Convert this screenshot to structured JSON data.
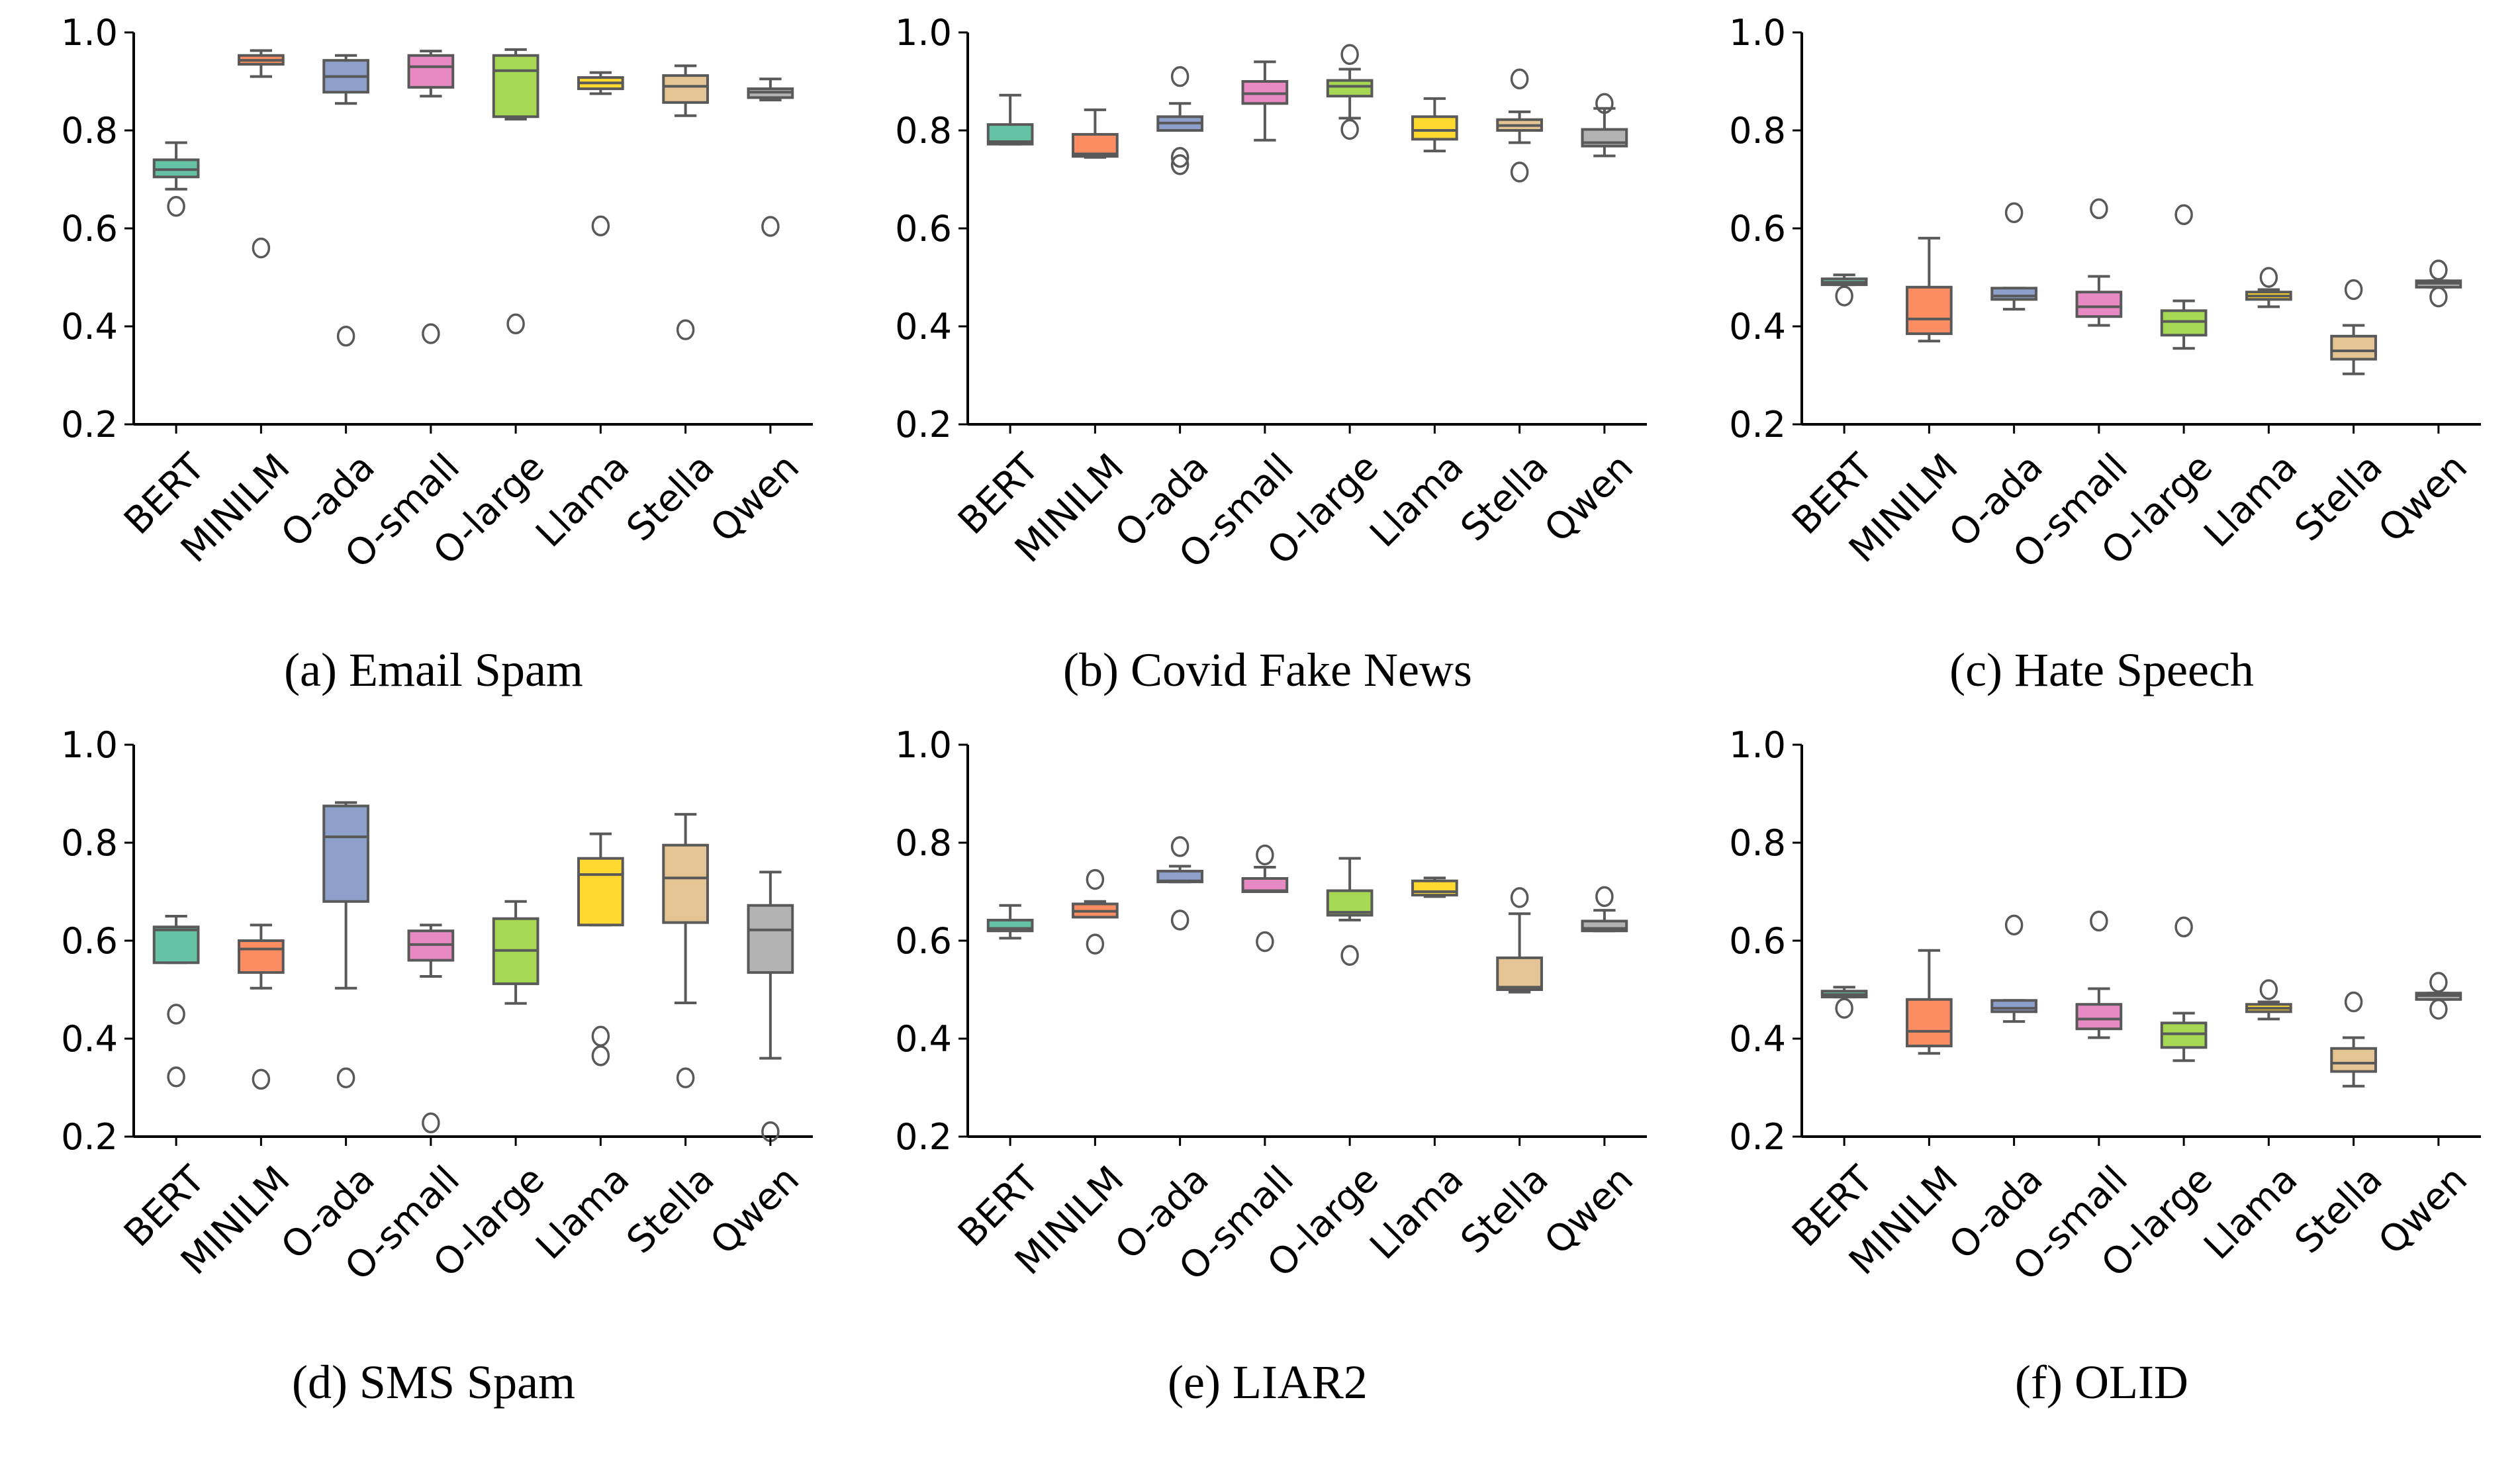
{
  "chart_data": [
    {
      "type": "box",
      "caption": "(a) Email Spam",
      "ylim": [
        0.2,
        1.0
      ],
      "yticks": [
        "0.2",
        "0.4",
        "0.6",
        "0.8",
        "1.0"
      ],
      "categories": [
        "BERT",
        "MINILM",
        "O-ada",
        "O-small",
        "O-large",
        "Llama",
        "Stella",
        "Qwen"
      ],
      "boxes": [
        {
          "whislo": 0.68,
          "q1": 0.705,
          "med": 0.72,
          "q3": 0.74,
          "whishi": 0.775,
          "fliers": [
            0.645
          ]
        },
        {
          "whislo": 0.91,
          "q1": 0.935,
          "med": 0.943,
          "q3": 0.953,
          "whishi": 0.963,
          "fliers": [
            0.56
          ]
        },
        {
          "whislo": 0.855,
          "q1": 0.878,
          "med": 0.91,
          "q3": 0.943,
          "whishi": 0.953,
          "fliers": [
            0.38
          ]
        },
        {
          "whislo": 0.87,
          "q1": 0.888,
          "med": 0.93,
          "q3": 0.953,
          "whishi": 0.962,
          "fliers": [
            0.385
          ]
        },
        {
          "whislo": 0.823,
          "q1": 0.828,
          "med": 0.922,
          "q3": 0.953,
          "whishi": 0.965,
          "fliers": [
            0.405
          ]
        },
        {
          "whislo": 0.875,
          "q1": 0.885,
          "med": 0.897,
          "q3": 0.908,
          "whishi": 0.918,
          "fliers": [
            0.605
          ]
        },
        {
          "whislo": 0.83,
          "q1": 0.857,
          "med": 0.89,
          "q3": 0.912,
          "whishi": 0.932,
          "fliers": [
            0.393
          ]
        },
        {
          "whislo": 0.862,
          "q1": 0.867,
          "med": 0.878,
          "q3": 0.885,
          "whishi": 0.905,
          "fliers": [
            0.604
          ]
        }
      ]
    },
    {
      "type": "box",
      "caption": "(b) Covid Fake News",
      "ylim": [
        0.2,
        1.0
      ],
      "yticks": [
        "0.2",
        "0.4",
        "0.6",
        "0.8",
        "1.0"
      ],
      "categories": [
        "BERT",
        "MINILM",
        "O-ada",
        "O-small",
        "O-large",
        "Llama",
        "Stella",
        "Qwen"
      ],
      "boxes": [
        {
          "whislo": 0.772,
          "q1": 0.772,
          "med": 0.777,
          "q3": 0.812,
          "whishi": 0.872,
          "fliers": []
        },
        {
          "whislo": 0.745,
          "q1": 0.747,
          "med": 0.752,
          "q3": 0.792,
          "whishi": 0.842,
          "fliers": []
        },
        {
          "whislo": 0.8,
          "q1": 0.8,
          "med": 0.815,
          "q3": 0.828,
          "whishi": 0.855,
          "fliers": [
            0.91,
            0.745,
            0.73
          ]
        },
        {
          "whislo": 0.78,
          "q1": 0.855,
          "med": 0.875,
          "q3": 0.9,
          "whishi": 0.94,
          "fliers": []
        },
        {
          "whislo": 0.825,
          "q1": 0.87,
          "med": 0.89,
          "q3": 0.902,
          "whishi": 0.925,
          "fliers": [
            0.955,
            0.802
          ]
        },
        {
          "whislo": 0.758,
          "q1": 0.782,
          "med": 0.8,
          "q3": 0.828,
          "whishi": 0.865,
          "fliers": []
        },
        {
          "whislo": 0.775,
          "q1": 0.8,
          "med": 0.81,
          "q3": 0.822,
          "whishi": 0.838,
          "fliers": [
            0.905,
            0.715
          ]
        },
        {
          "whislo": 0.748,
          "q1": 0.768,
          "med": 0.775,
          "q3": 0.802,
          "whishi": 0.845,
          "fliers": [
            0.855
          ]
        }
      ]
    },
    {
      "type": "box",
      "caption": "(c) Hate Speech",
      "ylim": [
        0.2,
        1.0
      ],
      "yticks": [
        "0.2",
        "0.4",
        "0.6",
        "0.8",
        "1.0"
      ],
      "categories": [
        "BERT",
        "MINILM",
        "O-ada",
        "O-small",
        "O-large",
        "Llama",
        "Stella",
        "Qwen"
      ],
      "boxes": [
        {
          "whislo": 0.485,
          "q1": 0.485,
          "med": 0.49,
          "q3": 0.497,
          "whishi": 0.505,
          "fliers": [
            0.462
          ]
        },
        {
          "whislo": 0.37,
          "q1": 0.385,
          "med": 0.415,
          "q3": 0.48,
          "whishi": 0.58,
          "fliers": []
        },
        {
          "whislo": 0.435,
          "q1": 0.455,
          "med": 0.462,
          "q3": 0.478,
          "whishi": 0.478,
          "fliers": [
            0.632
          ]
        },
        {
          "whislo": 0.402,
          "q1": 0.42,
          "med": 0.44,
          "q3": 0.47,
          "whishi": 0.502,
          "fliers": [
            0.64
          ]
        },
        {
          "whislo": 0.355,
          "q1": 0.382,
          "med": 0.41,
          "q3": 0.432,
          "whishi": 0.452,
          "fliers": [
            0.628
          ]
        },
        {
          "whislo": 0.44,
          "q1": 0.455,
          "med": 0.462,
          "q3": 0.47,
          "whishi": 0.475,
          "fliers": [
            0.5
          ]
        },
        {
          "whislo": 0.303,
          "q1": 0.333,
          "med": 0.35,
          "q3": 0.38,
          "whishi": 0.402,
          "fliers": [
            0.475
          ]
        },
        {
          "whislo": 0.48,
          "q1": 0.48,
          "med": 0.488,
          "q3": 0.493,
          "whishi": 0.493,
          "fliers": [
            0.515,
            0.46
          ]
        }
      ]
    },
    {
      "type": "box",
      "caption": "(d) SMS Spam",
      "ylim": [
        0.2,
        1.0
      ],
      "yticks": [
        "0.2",
        "0.4",
        "0.6",
        "0.8",
        "1.0"
      ],
      "categories": [
        "BERT",
        "MINILM",
        "O-ada",
        "O-small",
        "O-large",
        "Llama",
        "Stella",
        "Qwen"
      ],
      "boxes": [
        {
          "whislo": 0.555,
          "q1": 0.555,
          "med": 0.622,
          "q3": 0.628,
          "whishi": 0.65,
          "fliers": [
            0.45,
            0.322
          ]
        },
        {
          "whislo": 0.503,
          "q1": 0.535,
          "med": 0.583,
          "q3": 0.6,
          "whishi": 0.632,
          "fliers": [
            0.317
          ]
        },
        {
          "whislo": 0.503,
          "q1": 0.68,
          "med": 0.812,
          "q3": 0.875,
          "whishi": 0.882,
          "fliers": [
            0.32
          ]
        },
        {
          "whislo": 0.527,
          "q1": 0.56,
          "med": 0.592,
          "q3": 0.62,
          "whishi": 0.632,
          "fliers": [
            0.228
          ]
        },
        {
          "whislo": 0.472,
          "q1": 0.512,
          "med": 0.58,
          "q3": 0.645,
          "whishi": 0.68,
          "fliers": []
        },
        {
          "whislo": 0.632,
          "q1": 0.632,
          "med": 0.735,
          "q3": 0.768,
          "whishi": 0.818,
          "fliers": [
            0.405,
            0.365
          ]
        },
        {
          "whislo": 0.473,
          "q1": 0.637,
          "med": 0.728,
          "q3": 0.795,
          "whishi": 0.858,
          "fliers": [
            0.32
          ]
        },
        {
          "whislo": 0.36,
          "q1": 0.535,
          "med": 0.622,
          "q3": 0.672,
          "whishi": 0.74,
          "fliers": [
            0.21
          ]
        }
      ]
    },
    {
      "type": "box",
      "caption": "(e) LIAR2",
      "ylim": [
        0.2,
        1.0
      ],
      "yticks": [
        "0.2",
        "0.4",
        "0.6",
        "0.8",
        "1.0"
      ],
      "categories": [
        "BERT",
        "MINILM",
        "O-ada",
        "O-small",
        "O-large",
        "Llama",
        "Stella",
        "Qwen"
      ],
      "boxes": [
        {
          "whislo": 0.605,
          "q1": 0.62,
          "med": 0.625,
          "q3": 0.642,
          "whishi": 0.672,
          "fliers": []
        },
        {
          "whislo": 0.648,
          "q1": 0.648,
          "med": 0.66,
          "q3": 0.675,
          "whishi": 0.68,
          "fliers": [
            0.725,
            0.593
          ]
        },
        {
          "whislo": 0.72,
          "q1": 0.72,
          "med": 0.722,
          "q3": 0.742,
          "whishi": 0.752,
          "fliers": [
            0.792,
            0.642
          ]
        },
        {
          "whislo": 0.7,
          "q1": 0.7,
          "med": 0.702,
          "q3": 0.727,
          "whishi": 0.75,
          "fliers": [
            0.775,
            0.598
          ]
        },
        {
          "whislo": 0.642,
          "q1": 0.652,
          "med": 0.658,
          "q3": 0.702,
          "whishi": 0.768,
          "fliers": [
            0.57
          ]
        },
        {
          "whislo": 0.69,
          "q1": 0.693,
          "med": 0.7,
          "q3": 0.722,
          "whishi": 0.728,
          "fliers": []
        },
        {
          "whislo": 0.495,
          "q1": 0.5,
          "med": 0.505,
          "q3": 0.565,
          "whishi": 0.655,
          "fliers": [
            0.688
          ]
        },
        {
          "whislo": 0.62,
          "q1": 0.62,
          "med": 0.625,
          "q3": 0.64,
          "whishi": 0.662,
          "fliers": [
            0.69
          ]
        }
      ]
    },
    {
      "type": "box",
      "caption": "(f) OLID",
      "ylim": [
        0.2,
        1.0
      ],
      "yticks": [
        "0.2",
        "0.4",
        "0.6",
        "0.8",
        "1.0"
      ],
      "categories": [
        "BERT",
        "MINILM",
        "O-ada",
        "O-small",
        "O-large",
        "Llama",
        "Stella",
        "Qwen"
      ],
      "boxes": [
        {
          "whislo": 0.485,
          "q1": 0.485,
          "med": 0.49,
          "q3": 0.497,
          "whishi": 0.505,
          "fliers": [
            0.462
          ]
        },
        {
          "whislo": 0.37,
          "q1": 0.385,
          "med": 0.415,
          "q3": 0.48,
          "whishi": 0.58,
          "fliers": []
        },
        {
          "whislo": 0.435,
          "q1": 0.455,
          "med": 0.462,
          "q3": 0.478,
          "whishi": 0.478,
          "fliers": [
            0.632
          ]
        },
        {
          "whislo": 0.402,
          "q1": 0.42,
          "med": 0.44,
          "q3": 0.47,
          "whishi": 0.502,
          "fliers": [
            0.64
          ]
        },
        {
          "whislo": 0.355,
          "q1": 0.382,
          "med": 0.41,
          "q3": 0.432,
          "whishi": 0.452,
          "fliers": [
            0.628
          ]
        },
        {
          "whislo": 0.44,
          "q1": 0.455,
          "med": 0.462,
          "q3": 0.47,
          "whishi": 0.475,
          "fliers": [
            0.5
          ]
        },
        {
          "whislo": 0.303,
          "q1": 0.333,
          "med": 0.35,
          "q3": 0.38,
          "whishi": 0.402,
          "fliers": [
            0.475
          ]
        },
        {
          "whislo": 0.48,
          "q1": 0.48,
          "med": 0.488,
          "q3": 0.493,
          "whishi": 0.493,
          "fliers": [
            0.515,
            0.46
          ]
        }
      ]
    }
  ],
  "palette": [
    "#66c2a5",
    "#fc8d62",
    "#8da0cb",
    "#e78ac3",
    "#a6d854",
    "#ffd92f",
    "#e5c494",
    "#b3b3b3"
  ],
  "line_color": "#595959"
}
